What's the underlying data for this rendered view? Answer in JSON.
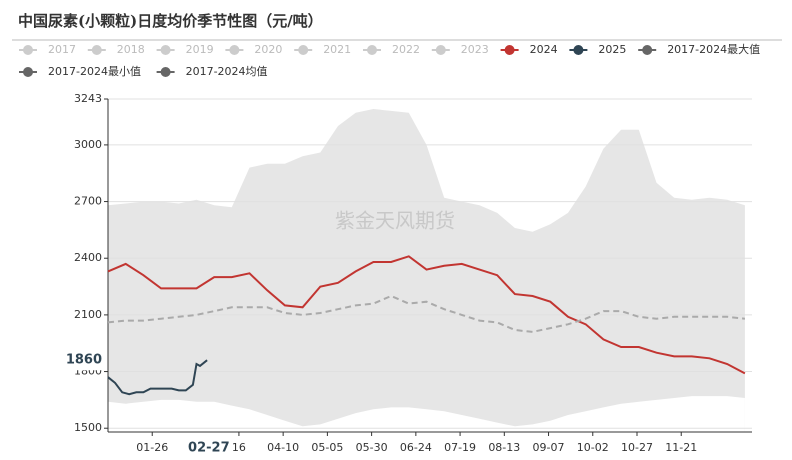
{
  "chart_data": {
    "type": "line",
    "title": "中国尿素(小颗粒)日度均价季节性图（元/吨）",
    "watermark": "紫金天风期货",
    "inactive_legend": [
      {
        "name": "2017",
        "color": "#cccccc"
      },
      {
        "name": "2018",
        "color": "#cccccc"
      },
      {
        "name": "2019",
        "color": "#cccccc"
      },
      {
        "name": "2020",
        "color": "#cccccc"
      },
      {
        "name": "2021",
        "color": "#cccccc"
      },
      {
        "name": "2022",
        "color": "#cccccc"
      },
      {
        "name": "2023",
        "color": "#cccccc"
      }
    ],
    "x": [
      1,
      11,
      21,
      31,
      41,
      51,
      61,
      71,
      81,
      91,
      101,
      111,
      121,
      131,
      141,
      151,
      161,
      171,
      181,
      191,
      201,
      211,
      221,
      231,
      241,
      251,
      261,
      271,
      281,
      291,
      301,
      311,
      321,
      331,
      341,
      351,
      361
    ],
    "series": [
      {
        "name": "2024",
        "color": "#c23531",
        "style": "solid",
        "values": [
          2330,
          2370,
          2310,
          2240,
          2240,
          2240,
          2300,
          2300,
          2320,
          2230,
          2150,
          2140,
          2250,
          2270,
          2330,
          2380,
          2380,
          2410,
          2340,
          2360,
          2370,
          2340,
          2310,
          2210,
          2200,
          2170,
          2090,
          2050,
          1970,
          1930,
          1930,
          1900,
          1880,
          1880,
          1870,
          1840,
          1790
        ]
      },
      {
        "name": "2025",
        "color": "#2f4554",
        "style": "solid",
        "x": [
          1,
          5,
          9,
          13,
          17,
          21,
          25,
          29,
          33,
          37,
          41,
          45,
          49,
          51,
          53,
          57
        ],
        "values": [
          1770,
          1740,
          1690,
          1680,
          1690,
          1690,
          1710,
          1710,
          1710,
          1710,
          1700,
          1700,
          1730,
          1840,
          1830,
          1860
        ]
      },
      {
        "name": "2017-2024最大值",
        "color": "#666666",
        "style": "band-top",
        "fill": "#e6e6e6",
        "values": [
          2680,
          2690,
          2700,
          2700,
          2690,
          2710,
          2680,
          2670,
          2880,
          2900,
          2900,
          2940,
          2960,
          3100,
          3170,
          3190,
          3180,
          3170,
          3000,
          2720,
          2700,
          2680,
          2640,
          2560,
          2540,
          2580,
          2640,
          2780,
          2980,
          3080,
          3080,
          2800,
          2720,
          2710,
          2720,
          2710,
          2680
        ]
      },
      {
        "name": "2017-2024最小值",
        "color": "#666666",
        "style": "band-bottom",
        "fill": "#ffffff",
        "values": [
          1640,
          1630,
          1640,
          1650,
          1650,
          1640,
          1640,
          1620,
          1600,
          1570,
          1540,
          1510,
          1520,
          1550,
          1580,
          1600,
          1610,
          1610,
          1600,
          1590,
          1570,
          1550,
          1530,
          1510,
          1520,
          1540,
          1570,
          1590,
          1610,
          1630,
          1640,
          1650,
          1660,
          1670,
          1670,
          1670,
          1660
        ]
      },
      {
        "name": "2017-2024均值",
        "color": "#666666",
        "style": "dashed",
        "stroke": "#aaaaaa",
        "values": [
          2060,
          2070,
          2070,
          2080,
          2090,
          2100,
          2120,
          2140,
          2140,
          2140,
          2110,
          2100,
          2110,
          2130,
          2150,
          2160,
          2200,
          2160,
          2170,
          2130,
          2100,
          2070,
          2060,
          2020,
          2010,
          2030,
          2050,
          2080,
          2120,
          2120,
          2090,
          2080,
          2090,
          2090,
          2090,
          2090,
          2080
        ]
      }
    ],
    "xlim": [
      1,
      365
    ],
    "xticks": [
      {
        "value": 26,
        "label": "01-26"
      },
      {
        "value": 75,
        "label": "16"
      },
      {
        "value": 100,
        "label": "04-10"
      },
      {
        "value": 125,
        "label": "05-05"
      },
      {
        "value": 150,
        "label": "05-30"
      },
      {
        "value": 175,
        "label": "06-24"
      },
      {
        "value": 200,
        "label": "07-19"
      },
      {
        "value": 225,
        "label": "08-13"
      },
      {
        "value": 250,
        "label": "09-07"
      },
      {
        "value": 275,
        "label": "10-02"
      },
      {
        "value": 300,
        "label": "10-27"
      },
      {
        "value": 325,
        "label": "11-21"
      }
    ],
    "current_date": {
      "value": 58,
      "label": "02-27"
    },
    "current_value": 1860,
    "ylim": [
      1480,
      3243
    ],
    "yticks": [
      1500,
      1800,
      2100,
      2400,
      2700,
      3000,
      3243
    ],
    "grid": true
  }
}
